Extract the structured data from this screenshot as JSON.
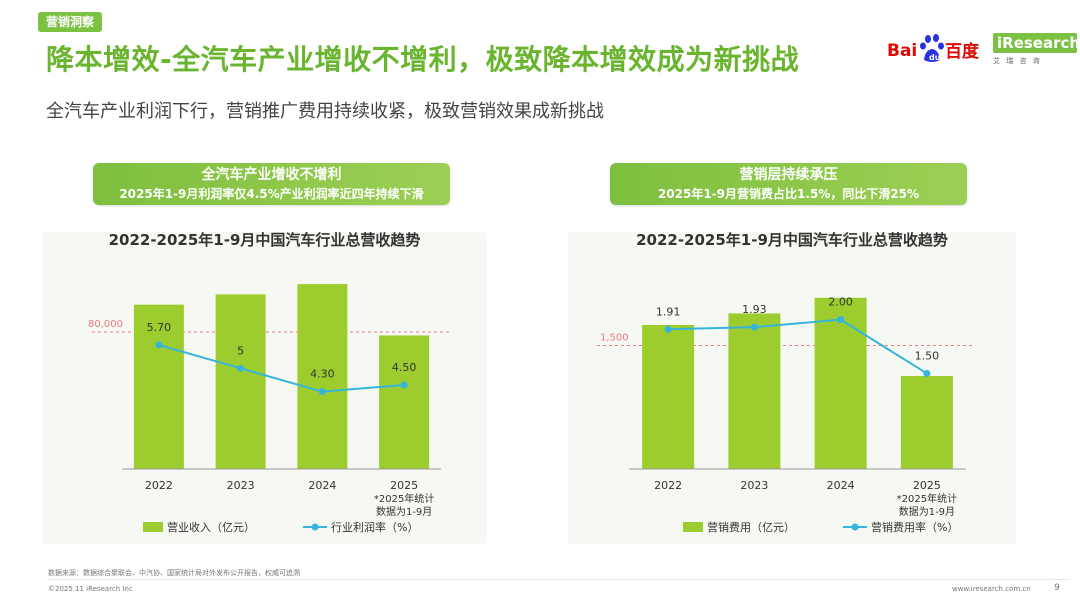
{
  "header": {
    "tag": "营销洞察",
    "title": "降本增效-全汽车产业增收不增利，极致降本增效成为新挑战",
    "subtitle": "全汽车产业利润下行，营销推广费用持续收紧，极致营销效果成新挑战",
    "logo_baidu": "Bai百度",
    "logo_iresearch": "iResearch",
    "logo_iresearch_sub": "艾 瑞 咨 询"
  },
  "left": {
    "banner_line1": "全汽车产业增收不增利",
    "banner_line2": "2025年1-9月利润率仅4.5%产业利润率近四年持续下滑"
  },
  "right": {
    "banner_line1": "营销层持续承压",
    "banner_line2": "2025年1-9月营销费占比1.5%，同比下滑25%"
  },
  "footer": {
    "note": "数据来源：数据综合聚联会、中汽协、国家统计局对外发布公开报告，权威可追溯",
    "copyright": "©2025.11 iResearch Inc",
    "site": "www.iresearch.com.cn",
    "page": "9"
  },
  "colors": {
    "bar": "#9ccc2e",
    "line": "#35b5dc",
    "refline": "#e87b7b",
    "title_green": "#6ab530"
  },
  "chart_data": [
    {
      "type": "bar+line",
      "title": "2022-2025年1-9月中国汽车行业总营收趋势",
      "categories": [
        "2022",
        "2023",
        "2024",
        "2025"
      ],
      "category_notes": [
        "",
        "",
        "",
        "*2025年统计数据为1-9月"
      ],
      "bar_series": {
        "name": "营业收入（亿元）",
        "values": [
          96000,
          102000,
          108000,
          78000
        ]
      },
      "line_series": {
        "name": "行业利润率（%）",
        "values": [
          5.7,
          5.0,
          4.3,
          4.5
        ],
        "labels": [
          "5.70",
          "5",
          "4.30",
          "4.50"
        ]
      },
      "reference_line": {
        "value": 80000,
        "label": "80,000"
      },
      "bar_ylim": [
        0,
        125000
      ],
      "line_ylim": [
        0,
        8.4
      ],
      "legend": "bottom"
    },
    {
      "type": "bar+line",
      "title": "2022-2025年1-9月中国汽车行业总营收趋势",
      "categories": [
        "2022",
        "2023",
        "2024",
        "2025"
      ],
      "category_notes": [
        "",
        "",
        "",
        "*2025年统计数据为1-9月"
      ],
      "bar_series": {
        "name": "营销费用（亿元）",
        "values": [
          1750,
          1890,
          2080,
          1130
        ]
      },
      "line_series": {
        "name": "营销费用率（%）",
        "values": [
          1.91,
          1.93,
          2.0,
          1.5
        ],
        "labels": [
          "1.91",
          "1.93",
          "2.00",
          "1.50"
        ]
      },
      "reference_line": {
        "value": 1500,
        "label": "1,500"
      },
      "bar_ylim": [
        0,
        2600
      ],
      "line_ylim": [
        0,
        2.6
      ],
      "legend": "bottom"
    }
  ]
}
